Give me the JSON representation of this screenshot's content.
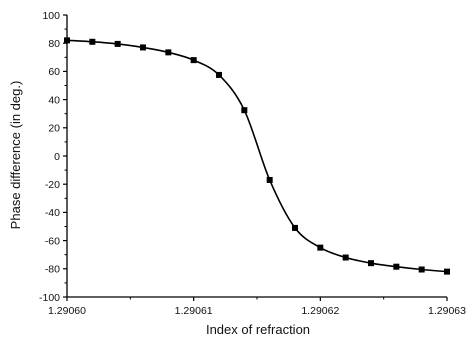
{
  "chart_data": {
    "type": "line",
    "title": "",
    "xlabel": "Index of refraction",
    "ylabel": "Phase difference (in deg.)",
    "xlim": [
      1.2906,
      1.29063
    ],
    "ylim": [
      -100,
      100
    ],
    "x_ticks": [
      "1.29060",
      "1.29061",
      "1.29062",
      "1.29063"
    ],
    "x_tick_values": [
      1.2906,
      1.29061,
      1.29062,
      1.29063
    ],
    "y_ticks": [
      "-100",
      "-80",
      "-60",
      "-40",
      "-20",
      "0",
      "20",
      "40",
      "60",
      "80",
      "100"
    ],
    "y_tick_values": [
      -100,
      -80,
      -60,
      -40,
      -20,
      0,
      20,
      40,
      60,
      80,
      100
    ],
    "grid": false,
    "series": [
      {
        "color": "#000000",
        "marker": "square",
        "x": [
          1.2906,
          1.290602,
          1.290604,
          1.290606,
          1.290608,
          1.29061,
          1.290612,
          1.290614,
          1.290616,
          1.290618,
          1.29062,
          1.290622,
          1.290624,
          1.290626,
          1.290628,
          1.29063
        ],
        "y": [
          82,
          81,
          79.5,
          77,
          73.5,
          68,
          57.5,
          32.5,
          -17,
          -51,
          -65,
          -72,
          -76,
          -78.5,
          -80.5,
          -82
        ]
      }
    ]
  }
}
